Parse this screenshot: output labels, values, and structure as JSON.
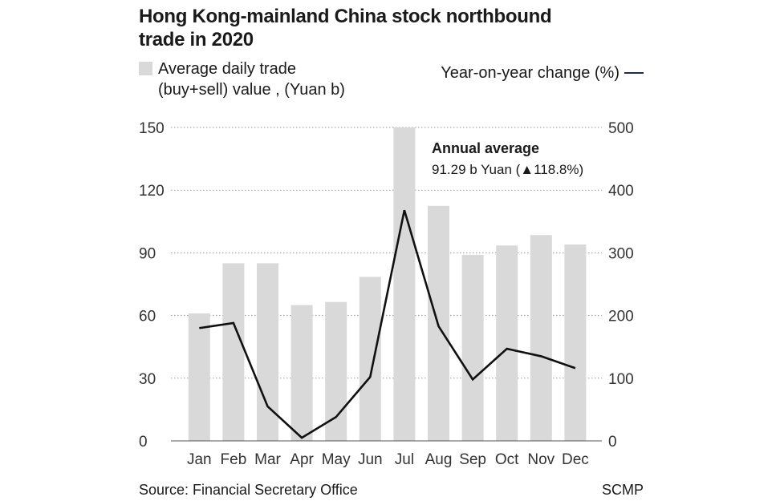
{
  "title": "Hong Kong-mainland China stock northbound trade in 2020",
  "footer": {
    "source": "Source: Financial Secretary Office",
    "credit": "SCMP"
  },
  "colors": {
    "bar": "#d9d9d9",
    "line": "#111111",
    "legend_line": "#1f2d4d",
    "grid": "#9a9a9a"
  },
  "chart_data": {
    "type": "bar",
    "categories": [
      "Jan",
      "Feb",
      "Mar",
      "Apr",
      "May",
      "Jun",
      "Jul",
      "Aug",
      "Sep",
      "Oct",
      "Nov",
      "Dec"
    ],
    "series": [
      {
        "name": "Average daily trade (buy+sell) value , (Yuan b)",
        "type": "bar",
        "axis": "left",
        "values": [
          61,
          85,
          85,
          65,
          66.5,
          78.5,
          150,
          112.5,
          89,
          93.5,
          98.5,
          94
        ]
      },
      {
        "name": "Year-on-year change (%)",
        "type": "line",
        "axis": "right",
        "values": [
          180,
          188,
          55,
          5,
          38,
          102,
          368,
          183,
          98,
          147,
          135,
          116
        ]
      }
    ],
    "y_left": {
      "min": 0,
      "max": 150,
      "ticks": [
        "0",
        "30",
        "60",
        "90",
        "120",
        "150"
      ]
    },
    "y_right": {
      "min": 0,
      "max": 500,
      "ticks": [
        "0",
        "100",
        "200",
        "300",
        "400",
        "500"
      ]
    },
    "grid": true,
    "annotation": {
      "title": "Annual average",
      "value": "91.29 b Yuan (▲118.8%)"
    },
    "legend": {
      "bar_label": "Average daily trade\n(buy+sell) value , (Yuan b)",
      "line_label": "Year-on-year change (%)"
    }
  }
}
